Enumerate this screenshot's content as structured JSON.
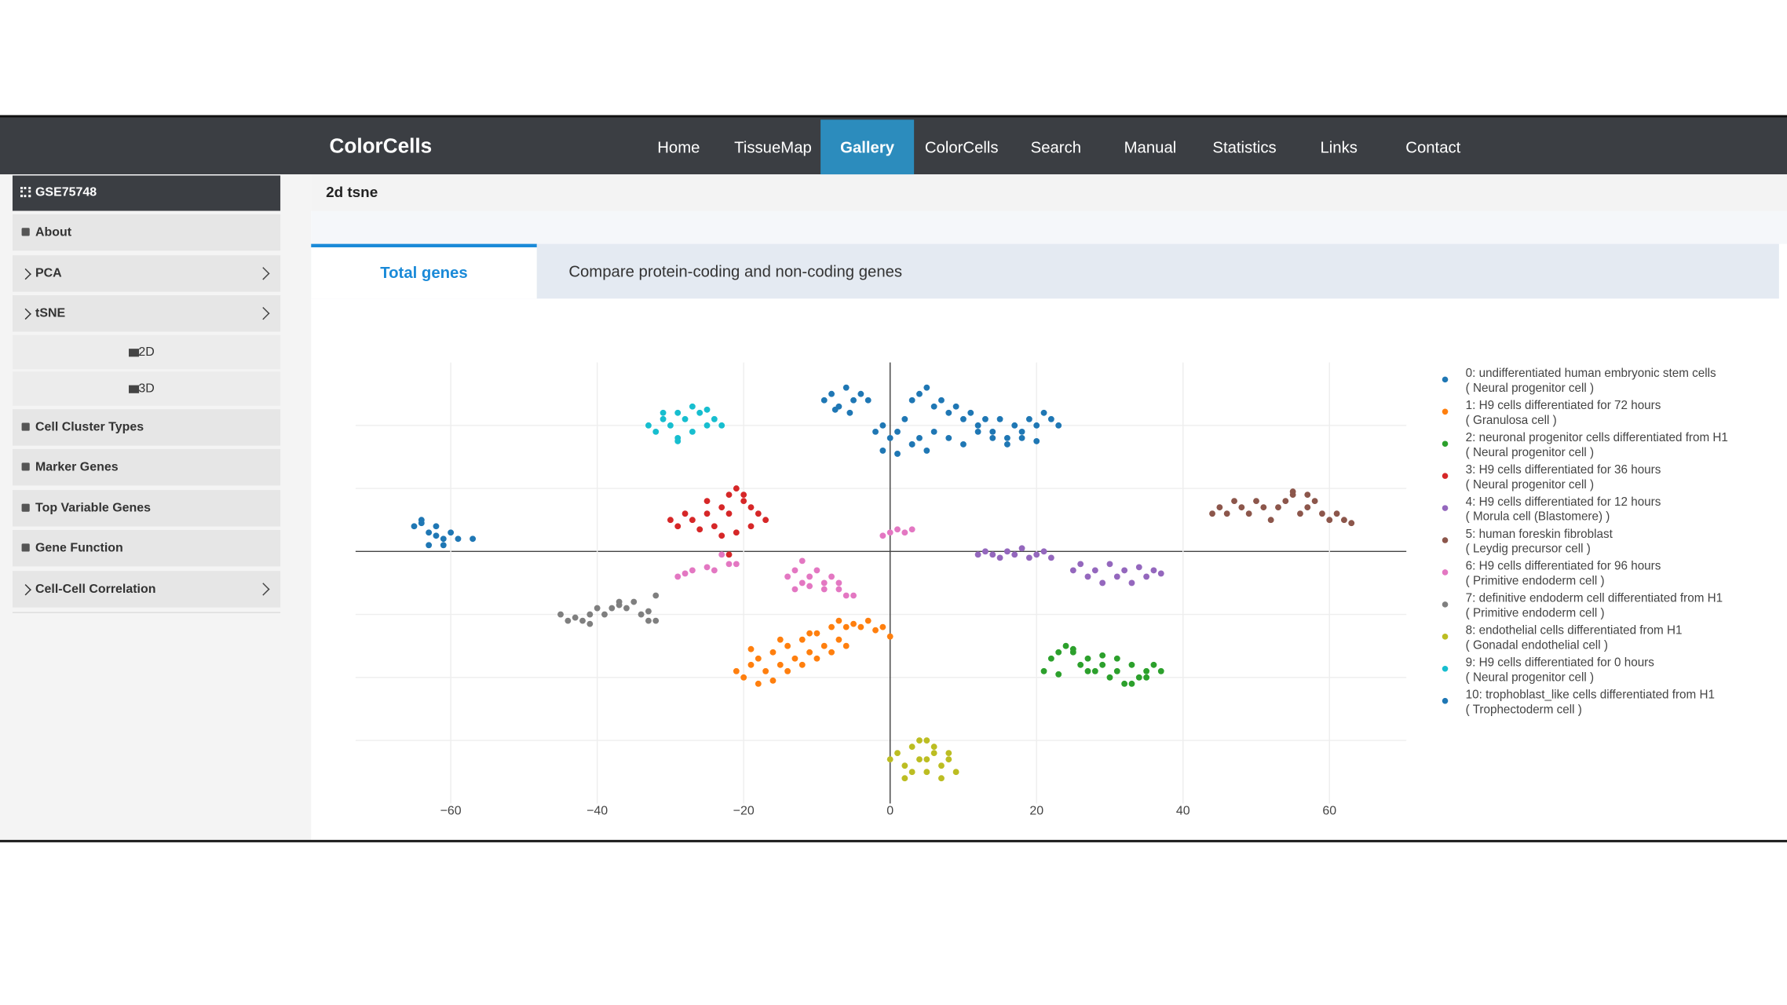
{
  "nav": {
    "brand": "ColorCells",
    "items": [
      "Home",
      "TissueMap",
      "Gallery",
      "ColorCells",
      "Search",
      "Manual",
      "Statistics",
      "Links",
      "Contact"
    ],
    "active": 2
  },
  "sidebar": {
    "title": "GSE75748",
    "items": [
      {
        "label": "About"
      },
      {
        "label": "PCA",
        "expandable": true
      },
      {
        "label": "tSNE",
        "expandable": true,
        "children": [
          "2D",
          "3D"
        ]
      },
      {
        "label": "Cell Cluster Types"
      },
      {
        "label": "Marker Genes"
      },
      {
        "label": "Top Variable Genes"
      },
      {
        "label": "Gene Function"
      },
      {
        "label": "Cell-Cell Correlation",
        "expandable": true
      }
    ]
  },
  "panel_title": "2d tsne",
  "tabs": {
    "items": [
      "Total genes",
      "Compare protein-coding and non-coding genes"
    ],
    "active": 0
  },
  "chart_data": {
    "type": "scatter",
    "xlim": [
      -73,
      70.5
    ],
    "ylim": [
      -40,
      30
    ],
    "xticks": [
      {
        "value": -60,
        "label": "−60"
      },
      {
        "value": -40,
        "label": "−40"
      },
      {
        "value": -20,
        "label": "−20"
      },
      0,
      20,
      40,
      60
    ],
    "yticks": [
      -30,
      -20,
      -10,
      0,
      10,
      20
    ],
    "grid": true,
    "zeroline": true,
    "legend": "right",
    "series": [
      {
        "name": "0: undifferentiated human embryonic stem cells",
        "cell_type": "( Neural progenitor cell )",
        "color": "#1f77b4",
        "x": [
          -9,
          -8,
          -7,
          -6,
          -5,
          -4,
          -3,
          -7.5,
          -5.5,
          3,
          4,
          5,
          6,
          7,
          8,
          9,
          10,
          11,
          12,
          13,
          14,
          15,
          16,
          17,
          18,
          19,
          20,
          21,
          22,
          23,
          6,
          8,
          10,
          12,
          14,
          16,
          18,
          20,
          -2,
          -1,
          0,
          1,
          2,
          3,
          4,
          5,
          -1,
          1,
          3
        ],
        "y": [
          24,
          25,
          23,
          26,
          24,
          25,
          24,
          22.5,
          22,
          24,
          25,
          26,
          23,
          24,
          22,
          23,
          21,
          22,
          20,
          21,
          19,
          21,
          18,
          20,
          19,
          21,
          20,
          22,
          21,
          20,
          19,
          18,
          17,
          19,
          18,
          17,
          18,
          17.5,
          19,
          20,
          18,
          19,
          21,
          17,
          18,
          16,
          16,
          15.5,
          17
        ]
      },
      {
        "name": "1: H9 cells differentiated for 72 hours",
        "cell_type": "( Granulosa cell )",
        "color": "#ff7f0e",
        "x": [
          -21,
          -20,
          -19,
          -18,
          -17,
          -16,
          -15,
          -14,
          -13,
          -12,
          -11,
          -10,
          -9,
          -8,
          -7,
          -6,
          -5,
          -4,
          -3,
          -2,
          -1,
          0,
          -18,
          -16,
          -14,
          -12,
          -10,
          -8,
          -6,
          -19,
          -15,
          -11,
          -7
        ],
        "y": [
          -19,
          -20,
          -18,
          -17,
          -19,
          -16,
          -18,
          -15,
          -17,
          -14,
          -16,
          -13,
          -15,
          -12,
          -14,
          -12,
          -11.5,
          -12,
          -11,
          -12.5,
          -12,
          -13.5,
          -21,
          -20.5,
          -19,
          -18,
          -17,
          -16,
          -15,
          -15.5,
          -14,
          -13,
          -11
        ]
      },
      {
        "name": "2: neuronal progenitor cells differentiated from H1",
        "cell_type": "( Neural progenitor cell )",
        "color": "#2ca02c",
        "x": [
          21,
          22,
          23,
          24,
          25,
          26,
          27,
          28,
          29,
          30,
          31,
          32,
          33,
          34,
          35,
          36,
          37,
          23,
          25,
          27,
          29,
          31,
          33,
          35
        ],
        "y": [
          -19,
          -17,
          -16,
          -15,
          -16,
          -18,
          -17,
          -19,
          -18,
          -20,
          -19,
          -21,
          -18,
          -20,
          -19,
          -18,
          -19,
          -19.5,
          -15.5,
          -19,
          -16.5,
          -17,
          -21,
          -20
        ]
      },
      {
        "name": "3: H9 cells differentiated for 36 hours",
        "cell_type": "( Neural progenitor cell )",
        "color": "#d62728",
        "x": [
          -30,
          -29,
          -28,
          -27,
          -26,
          -25,
          -24,
          -23,
          -22,
          -21,
          -20,
          -19,
          -18,
          -17,
          -23,
          -21,
          -19,
          -25,
          -22,
          -20,
          -22
        ],
        "y": [
          5,
          4,
          6,
          5,
          3.5,
          6,
          4,
          7,
          9,
          10,
          8,
          7,
          6,
          5,
          2.5,
          3,
          4,
          8,
          6,
          9,
          -0.5
        ]
      },
      {
        "name": "4: H9 cells differentiated for 12 hours",
        "cell_type": "( Morula cell (Blastomere) )",
        "color": "#9467bd",
        "x": [
          12,
          13,
          14,
          15,
          16,
          17,
          18,
          19,
          20,
          21,
          22,
          25,
          26,
          27,
          28,
          29,
          30,
          31,
          32,
          33,
          34,
          35,
          36,
          37
        ],
        "y": [
          -0.5,
          0,
          -0.5,
          -1,
          0,
          -0.5,
          0.5,
          -1,
          -0.5,
          0,
          -1,
          -3,
          -2,
          -4,
          -3,
          -5,
          -2,
          -4,
          -3,
          -5,
          -2.5,
          -4,
          -3,
          -3.5
        ]
      },
      {
        "name": "5: human foreskin fibroblast",
        "cell_type": "( Leydig precursor cell )",
        "color": "#8c564b",
        "x": [
          44,
          45,
          46,
          47,
          48,
          49,
          50,
          51,
          52,
          53,
          54,
          55,
          56,
          57,
          58,
          59,
          60,
          61,
          62,
          63,
          55,
          57
        ],
        "y": [
          6,
          7,
          6,
          8,
          7,
          6,
          8,
          7,
          5,
          7,
          8,
          9,
          6,
          7,
          8,
          6,
          5,
          6,
          5,
          4.5,
          9.5,
          9
        ]
      },
      {
        "name": "6: H9 cells differentiated for 96 hours",
        "cell_type": "( Primitive endoderm cell )",
        "color": "#e377c2",
        "x": [
          -14,
          -13,
          -12,
          -11,
          -10,
          -9,
          -8,
          -7,
          -6,
          -5,
          -13,
          -11,
          -9,
          -7,
          -29,
          -28,
          -27,
          -25,
          -24,
          -22,
          -21,
          -1,
          0,
          1,
          2,
          3,
          -23,
          -12
        ],
        "y": [
          -4,
          -3,
          -5,
          -4,
          -3,
          -5,
          -4,
          -6,
          -7,
          -7,
          -6,
          -5.5,
          -6,
          -5,
          -4,
          -3.5,
          -3,
          -2.5,
          -3,
          -2,
          -2,
          2.5,
          3,
          3.5,
          3,
          3.5,
          -0.5,
          -1.5
        ]
      },
      {
        "name": "7: definitive endoderm cell differentiated from H1",
        "cell_type": "( Primitive endoderm cell )",
        "color": "#7f7f7f",
        "x": [
          -45,
          -44,
          -43,
          -42,
          -41,
          -40,
          -39,
          -38,
          -37,
          -36,
          -35,
          -34,
          -33,
          -32,
          -41,
          -37,
          -33,
          -32
        ],
        "y": [
          -10,
          -11,
          -10.5,
          -11,
          -10,
          -9,
          -10,
          -9,
          -8,
          -9,
          -8,
          -10,
          -11,
          -7,
          -11.5,
          -8.5,
          -9.5,
          -11
        ]
      },
      {
        "name": "8: endothelial cells differentiated from H1",
        "cell_type": "( Gonadal endothelial cell )",
        "color": "#bcbd22",
        "x": [
          0,
          1,
          2,
          3,
          4,
          5,
          6,
          7,
          8,
          9,
          2,
          4,
          6,
          8,
          3,
          5,
          7,
          5
        ],
        "y": [
          -33,
          -32,
          -34,
          -31,
          -33,
          -35,
          -32,
          -34,
          -33,
          -35,
          -36,
          -30,
          -31,
          -32,
          -35,
          -33,
          -36,
          -30
        ]
      },
      {
        "name": "9: H9 cells differentiated for 0 hours",
        "cell_type": "( Neural progenitor cell )",
        "color": "#17becf",
        "x": [
          -33,
          -32,
          -31,
          -30,
          -29,
          -28,
          -27,
          -26,
          -25,
          -24,
          -23,
          -29,
          -27,
          -31,
          -25,
          -29
        ],
        "y": [
          20,
          19,
          21,
          20,
          22,
          21,
          23,
          22,
          20,
          21,
          20,
          18,
          19,
          22,
          22.5,
          17.5
        ]
      },
      {
        "name": "10: trophoblast_like cells differentiated from H1",
        "cell_type": "( Trophectoderm cell )",
        "color": "#1f77b4",
        "x": [
          -65,
          -64,
          -63,
          -62,
          -61,
          -60,
          -59,
          -63,
          -61,
          -64,
          -62,
          -57
        ],
        "y": [
          4,
          5,
          3,
          4,
          2,
          3,
          2,
          1,
          1,
          4.5,
          2.5,
          2
        ]
      }
    ]
  }
}
